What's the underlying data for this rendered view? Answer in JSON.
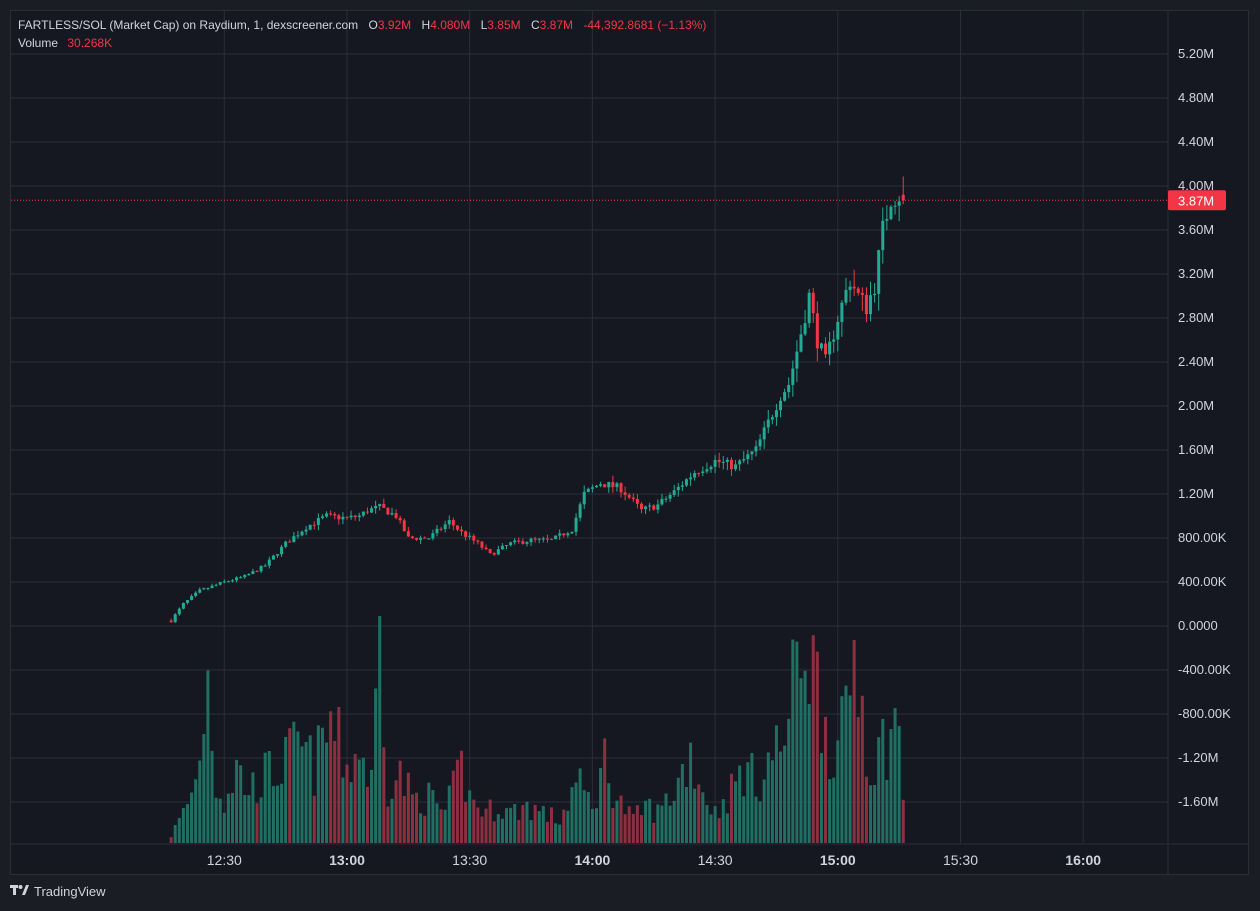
{
  "legend": {
    "title": "FARTLESS/SOL (Market Cap) on Raydium, 1, dexscreener.com",
    "o_label": "O",
    "o_value": "3.92M",
    "h_label": "H",
    "h_value": "4.080M",
    "l_label": "L",
    "l_value": "3.85M",
    "c_label": "C",
    "c_value": "3.87M",
    "change": "-44,392.8681 (−1.13%)",
    "volume_label": "Volume",
    "volume_value": "30.268K"
  },
  "footer": {
    "brand": "TradingView",
    "logo_icon": "tradingview-logo-icon"
  },
  "colors": {
    "up": "#22ab94",
    "down": "#f23645",
    "up_vol": "#1f6f63",
    "down_vol": "#8c3040",
    "grid": "#2a2e39",
    "bg": "#151821",
    "text": "#d1d4dc",
    "price_line": "#f23645"
  },
  "chart_data": {
    "type": "candlestick",
    "y_axis_ticks": [
      "5.20M",
      "4.80M",
      "4.40M",
      "4.00M",
      "3.60M",
      "3.20M",
      "2.80M",
      "2.40M",
      "2.00M",
      "1.60M",
      "1.20M",
      "800.00K",
      "400.00K",
      "0.0000",
      "-400.00K",
      "-800.00K",
      "-1.20M",
      "-1.60M"
    ],
    "y_axis_values": [
      5.2,
      4.8,
      4.4,
      4.0,
      3.6,
      3.2,
      2.8,
      2.4,
      2.0,
      1.6,
      1.2,
      0.8,
      0.4,
      0,
      -0.4,
      -0.8,
      -1.2,
      -1.6
    ],
    "x_axis_ticks": [
      {
        "label": "12:30",
        "bold": false,
        "minute": -30
      },
      {
        "label": "13:00",
        "bold": true,
        "minute": 0
      },
      {
        "label": "13:30",
        "bold": false,
        "minute": 30
      },
      {
        "label": "14:00",
        "bold": true,
        "minute": 60
      },
      {
        "label": "14:30",
        "bold": false,
        "minute": 90
      },
      {
        "label": "15:00",
        "bold": true,
        "minute": 120
      },
      {
        "label": "15:30",
        "bold": false,
        "minute": 150
      },
      {
        "label": "16:00",
        "bold": true,
        "minute": 180
      }
    ],
    "last_price": 3.87,
    "last_price_label": "3.87M",
    "ylim": [
      -1.9,
      5.4
    ],
    "x_minutes_range": [
      -60,
      200
    ],
    "anchors": [
      [
        -43,
        0.05
      ],
      [
        -40,
        0.2
      ],
      [
        -36,
        0.32
      ],
      [
        -30,
        0.4
      ],
      [
        -25,
        0.45
      ],
      [
        -20,
        0.55
      ],
      [
        -15,
        0.75
      ],
      [
        -10,
        0.9
      ],
      [
        -5,
        1.0
      ],
      [
        0,
        0.98
      ],
      [
        3,
        1.0
      ],
      [
        5,
        1.05
      ],
      [
        8,
        1.08
      ],
      [
        12,
        1.0
      ],
      [
        15,
        0.8
      ],
      [
        20,
        0.8
      ],
      [
        25,
        0.95
      ],
      [
        28,
        0.85
      ],
      [
        32,
        0.75
      ],
      [
        35,
        0.65
      ],
      [
        40,
        0.75
      ],
      [
        45,
        0.78
      ],
      [
        50,
        0.78
      ],
      [
        55,
        0.88
      ],
      [
        58,
        1.2
      ],
      [
        62,
        1.3
      ],
      [
        67,
        1.25
      ],
      [
        72,
        1.05
      ],
      [
        76,
        1.1
      ],
      [
        80,
        1.22
      ],
      [
        85,
        1.4
      ],
      [
        90,
        1.5
      ],
      [
        95,
        1.45
      ],
      [
        100,
        1.6
      ],
      [
        103,
        1.85
      ],
      [
        106,
        2.1
      ],
      [
        108,
        2.2
      ],
      [
        110,
        2.5
      ],
      [
        113,
        3.0
      ],
      [
        115,
        2.6
      ],
      [
        117,
        2.4
      ],
      [
        120,
        2.8
      ],
      [
        123,
        3.15
      ],
      [
        125,
        3.0
      ],
      [
        127,
        2.9
      ],
      [
        129,
        3.1
      ],
      [
        131,
        3.6
      ],
      [
        133,
        3.9
      ],
      [
        135,
        3.92
      ],
      [
        136,
        3.87
      ]
    ],
    "volume_anchors": [
      [
        -43,
        0.1
      ],
      [
        -40,
        0.4
      ],
      [
        -37,
        0.8
      ],
      [
        -34,
        2.2
      ],
      [
        -32,
        0.8
      ],
      [
        -30,
        0.55
      ],
      [
        -27,
        1.0
      ],
      [
        -24,
        0.7
      ],
      [
        -20,
        0.9
      ],
      [
        -16,
        1.0
      ],
      [
        -12,
        1.3
      ],
      [
        -8,
        1.0
      ],
      [
        -4,
        1.6
      ],
      [
        0,
        1.0
      ],
      [
        3,
        1.25
      ],
      [
        6,
        0.8
      ],
      [
        8,
        2.8
      ],
      [
        10,
        0.8
      ],
      [
        13,
        0.9
      ],
      [
        16,
        0.6
      ],
      [
        20,
        0.6
      ],
      [
        24,
        0.4
      ],
      [
        28,
        1.0
      ],
      [
        30,
        0.6
      ],
      [
        34,
        0.4
      ],
      [
        37,
        0.5
      ],
      [
        40,
        0.4
      ],
      [
        44,
        0.5
      ],
      [
        48,
        0.4
      ],
      [
        52,
        0.3
      ],
      [
        56,
        0.8
      ],
      [
        60,
        0.5
      ],
      [
        63,
        1.1
      ],
      [
        66,
        0.6
      ],
      [
        70,
        0.3
      ],
      [
        73,
        0.5
      ],
      [
        76,
        0.4
      ],
      [
        80,
        0.7
      ],
      [
        84,
        1.2
      ],
      [
        87,
        0.7
      ],
      [
        90,
        0.4
      ],
      [
        94,
        0.7
      ],
      [
        97,
        1.0
      ],
      [
        100,
        0.8
      ],
      [
        103,
        1.1
      ],
      [
        106,
        1.3
      ],
      [
        108,
        1.6
      ],
      [
        110,
        2.4
      ],
      [
        112,
        2.9
      ],
      [
        114,
        2.3
      ],
      [
        116,
        1.9
      ],
      [
        118,
        1.4
      ],
      [
        120,
        1.2
      ],
      [
        122,
        1.6
      ],
      [
        124,
        2.6
      ],
      [
        126,
        1.9
      ],
      [
        128,
        1.0
      ],
      [
        130,
        1.2
      ],
      [
        132,
        1.4
      ],
      [
        134,
        1.6
      ],
      [
        135,
        1.3
      ],
      [
        136,
        0.7
      ]
    ]
  }
}
